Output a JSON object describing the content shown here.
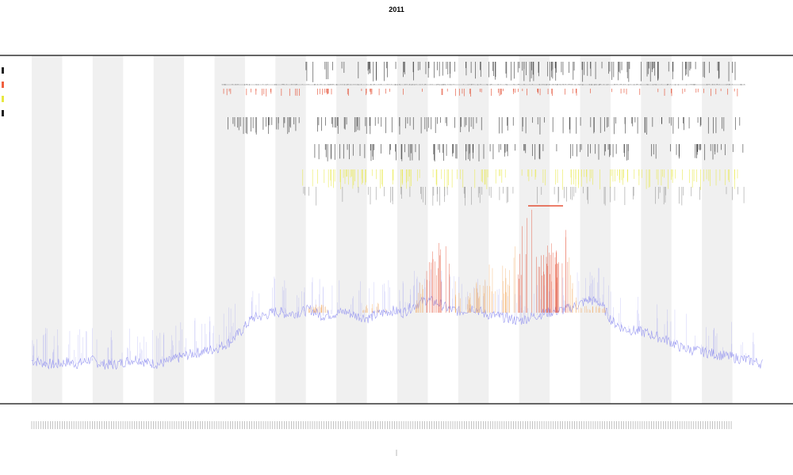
{
  "title": {
    "line1": "2011",
    "line2": "",
    "line3": ""
  },
  "colors": {
    "band": "#f0f0f0",
    "blue": "#8c8cf0",
    "orange": "#f0a050",
    "red": "#e03010",
    "yellow": "#e8e840",
    "black": "#202020",
    "gray": "#909090"
  },
  "legend": [
    {
      "label": "",
      "color": "#202020"
    },
    {
      "label": "",
      "color": "#f06040"
    },
    {
      "label": "",
      "color": "#e8e840"
    },
    {
      "label": "",
      "color": "#202020"
    }
  ],
  "track_labels": [
    "",
    ""
  ],
  "x_axis_label": "",
  "chart_data": {
    "type": "line",
    "title": "2011",
    "xlabel": "",
    "ylabel": "",
    "grid": true,
    "legend_position": "left",
    "shaded_bands": 12,
    "series": [
      {
        "values": [
          18,
          16,
          14,
          17,
          15,
          19,
          15,
          14,
          17,
          20,
          16,
          15,
          18,
          22,
          25,
          27,
          30,
          35,
          45,
          58,
          60,
          64,
          62,
          63,
          66,
          60,
          62,
          64,
          60,
          58,
          62,
          65,
          63,
          70,
          75,
          72,
          66,
          64,
          68,
          62,
          60,
          58,
          55,
          59,
          62,
          64,
          66,
          70,
          75,
          72,
          55,
          48,
          46,
          44,
          40,
          36,
          30,
          28,
          26,
          24,
          22,
          20,
          18,
          15
        ]
      },
      {
        "values": [
          0,
          0,
          0,
          0,
          0,
          0,
          0,
          0,
          0,
          0,
          0,
          0,
          0,
          0,
          0,
          0,
          0,
          0,
          0,
          0,
          0,
          0,
          0,
          0,
          5,
          10,
          0,
          0,
          0,
          8,
          12,
          0,
          0,
          0,
          60,
          70,
          62,
          10,
          20,
          40,
          45,
          38,
          70,
          92,
          70,
          60,
          80,
          10,
          5,
          8,
          0,
          0,
          0,
          0,
          0,
          0,
          0,
          0,
          0,
          0,
          0,
          0,
          0,
          0
        ]
      }
    ]
  }
}
